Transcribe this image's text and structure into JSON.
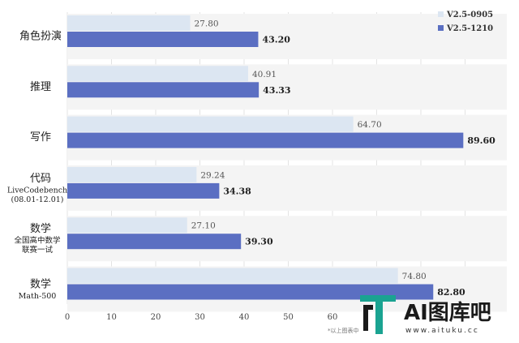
{
  "chart_data": {
    "type": "bar",
    "orientation": "horizontal",
    "categories": [
      {
        "label": "角色扮演",
        "sub": []
      },
      {
        "label": "推理",
        "sub": []
      },
      {
        "label": "写作",
        "sub": []
      },
      {
        "label": "代码",
        "sub": [
          "LiveCodebench",
          "(08.01-12.01)"
        ]
      },
      {
        "label": "数学",
        "sub": [
          "全国高中数学",
          "联赛一试"
        ]
      },
      {
        "label": "数学",
        "sub": [
          "Math-500"
        ]
      }
    ],
    "series": [
      {
        "name": "V2.5-0905",
        "color": "#dce6f2",
        "value_labels": [
          "27.80",
          "40.91",
          "64.70",
          "29.24",
          "27.10",
          "74.80"
        ],
        "values": [
          27.8,
          40.91,
          64.7,
          29.24,
          27.1,
          74.8
        ]
      },
      {
        "name": "V2.5-1210",
        "color": "#5b6fc2",
        "value_labels": [
          "43.20",
          "43.33",
          "89.60",
          "34.38",
          "39.30",
          "82.80"
        ],
        "values": [
          43.2,
          43.33,
          89.6,
          34.38,
          39.3,
          82.8
        ]
      }
    ],
    "xlim": [
      0,
      100
    ],
    "xticks": [
      "0",
      "10",
      "20",
      "30",
      "40",
      "50",
      "60"
    ],
    "legend_position": "top-right",
    "grid": "vertical",
    "footnote": "*以上图表中"
  },
  "watermark": {
    "text": "AI图库吧",
    "url": "www.aituku.cc"
  }
}
